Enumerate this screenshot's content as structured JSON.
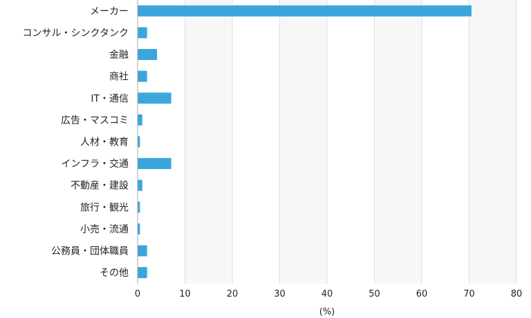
{
  "chart_data": {
    "type": "bar",
    "orientation": "horizontal",
    "categories": [
      "メーカー",
      "コンサル・シンクタンク",
      "金融",
      "商社",
      "IT・通信",
      "広告・マスコミ",
      "人材・教育",
      "インフラ・交通",
      "不動産・建設",
      "旅行・観光",
      "小売・流通",
      "公務員・団体職員",
      "その他"
    ],
    "values": [
      70.5,
      2.0,
      4.1,
      2.0,
      7.1,
      1.0,
      0.5,
      7.1,
      1.0,
      0.5,
      0.5,
      2.0,
      2.0
    ],
    "xlim": [
      0,
      80
    ],
    "xticks": [
      0,
      10,
      20,
      30,
      40,
      50,
      60,
      70,
      80
    ],
    "xlabel": "(%)",
    "grid": "vertical",
    "bar_color": "#3aa6dc",
    "band_color": "#f7f7f7",
    "grid_color": "#dddddd"
  }
}
